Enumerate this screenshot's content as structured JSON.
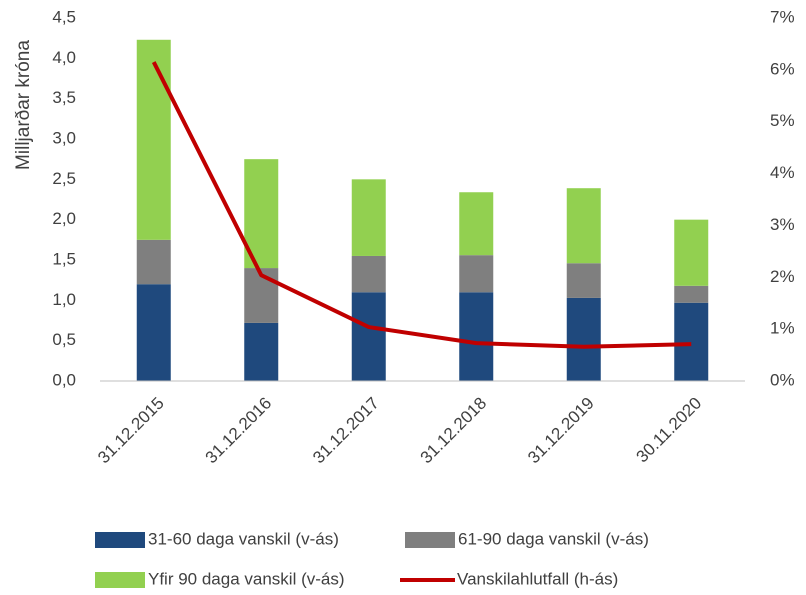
{
  "chart_data": {
    "type": "bar",
    "y_label": "Milljarðar króna",
    "categories": [
      "31.12.2015",
      "31.12.2016",
      "31.12.2017",
      "31.12.2018",
      "31.12.2019",
      "30.11.2020"
    ],
    "series": [
      {
        "name": "31-60 daga vanskil (v-ás)",
        "color": "#1f497d",
        "values": [
          1.2,
          0.72,
          1.1,
          1.1,
          1.03,
          0.97
        ]
      },
      {
        "name": "61-90 daga vanskil (v-ás)",
        "color": "#7f7f7f",
        "values": [
          0.55,
          0.68,
          0.45,
          0.46,
          0.43,
          0.21
        ]
      },
      {
        "name": "Yfir 90 daga vanskil (v-ás)",
        "color": "#92d050",
        "values": [
          2.48,
          1.35,
          0.95,
          0.78,
          0.93,
          0.82
        ]
      },
      {
        "name": "Vanskilahlutfall (h-ás)",
        "color": "#c00000",
        "type": "line",
        "axis": "y2",
        "values": [
          6.15,
          2.04,
          1.04,
          0.73,
          0.66,
          0.71
        ]
      }
    ],
    "stacked": true,
    "ylim": [
      0,
      4.5
    ],
    "yticks": [
      {
        "value": 0,
        "label": "0,0"
      },
      {
        "value": 0.5,
        "label": "0,5"
      },
      {
        "value": 1,
        "label": "1,0"
      },
      {
        "value": 1.5,
        "label": "1,5"
      },
      {
        "value": 2,
        "label": "2,0"
      },
      {
        "value": 2.5,
        "label": "2,5"
      },
      {
        "value": 3,
        "label": "3,0"
      },
      {
        "value": 3.5,
        "label": "3,5"
      },
      {
        "value": 4,
        "label": "4,0"
      },
      {
        "value": 4.5,
        "label": "4,5"
      }
    ],
    "y2lim": [
      0,
      7
    ],
    "y2ticks": [
      {
        "value": 0,
        "label": "0%"
      },
      {
        "value": 1,
        "label": "1%"
      },
      {
        "value": 2,
        "label": "2%"
      },
      {
        "value": 3,
        "label": "3%"
      },
      {
        "value": 4,
        "label": "4%"
      },
      {
        "value": 5,
        "label": "5%"
      },
      {
        "value": 6,
        "label": "6%"
      },
      {
        "value": 7,
        "label": "7%"
      }
    ],
    "grid": false,
    "legend": "bottom"
  }
}
